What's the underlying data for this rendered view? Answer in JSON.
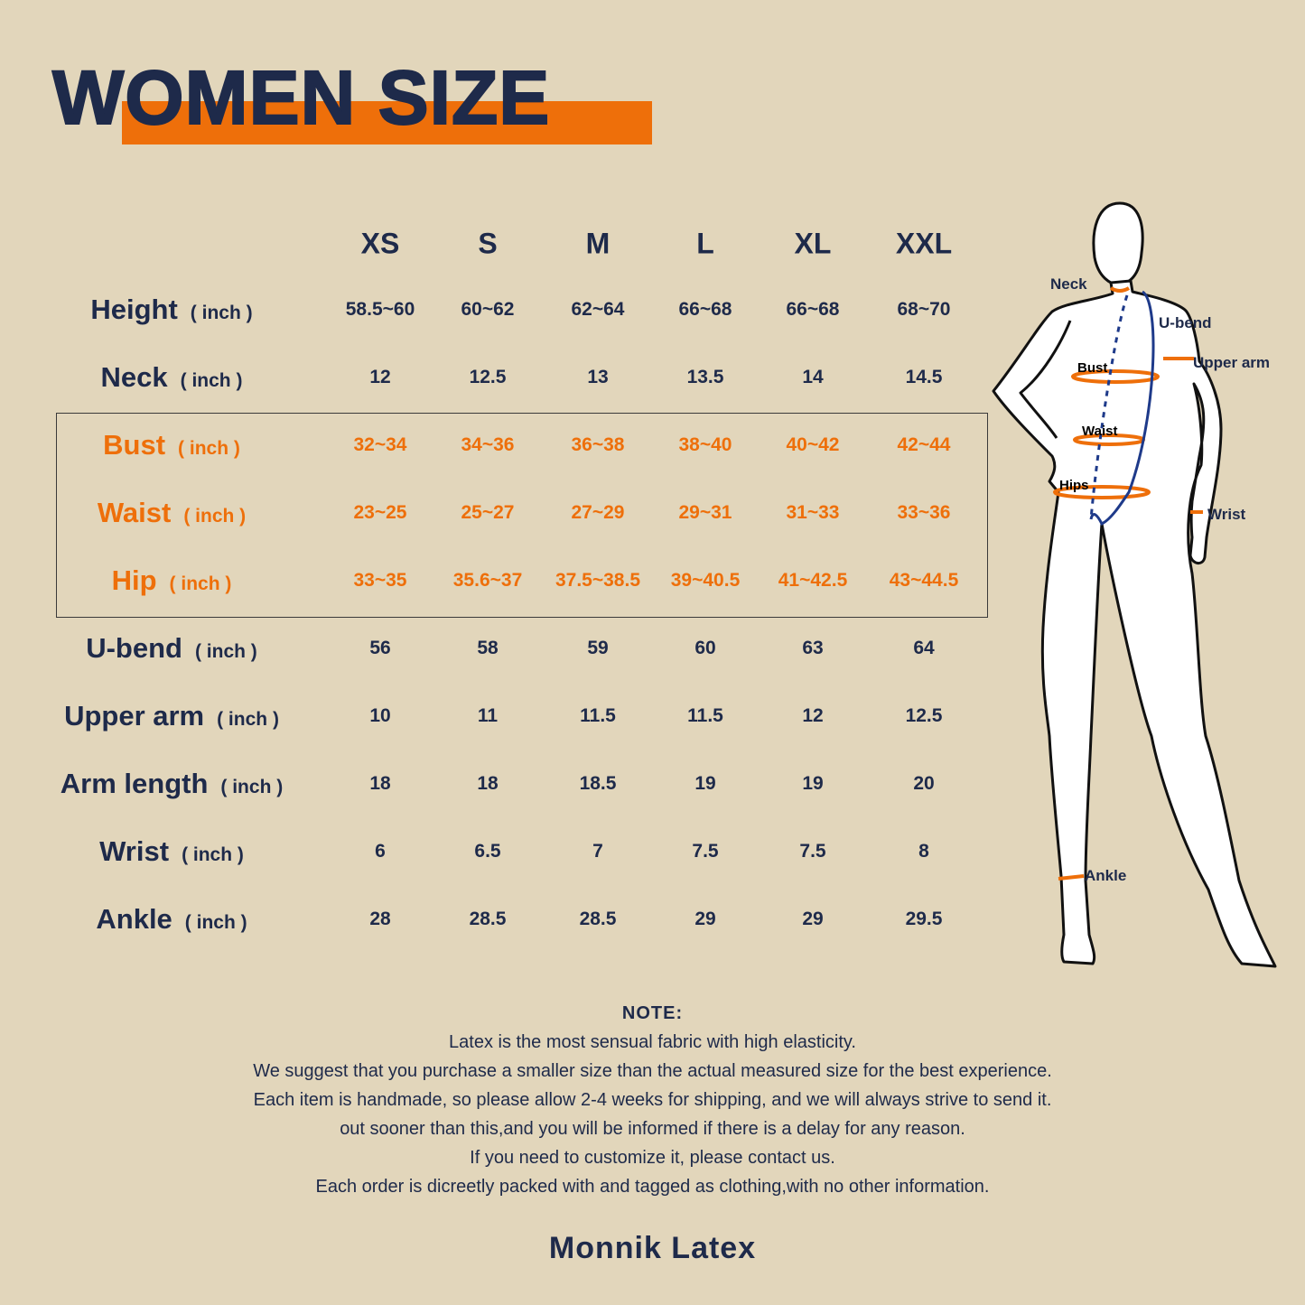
{
  "title": "WOMEN SIZE",
  "colors": {
    "background": "#e2d6bb",
    "navy": "#1e2a4a",
    "orange": "#ee6f0a"
  },
  "sizes": [
    "XS",
    "S",
    "M",
    "L",
    "XL",
    "XXL"
  ],
  "rows": [
    {
      "label": "Height",
      "unit": "( inch )",
      "highlight": false,
      "values": [
        "58.5~60",
        "60~62",
        "62~64",
        "66~68",
        "66~68",
        "68~70"
      ]
    },
    {
      "label": "Neck",
      "unit": "( inch )",
      "highlight": false,
      "values": [
        "12",
        "12.5",
        "13",
        "13.5",
        "14",
        "14.5"
      ]
    },
    {
      "label": "Bust",
      "unit": "( inch )",
      "highlight": true,
      "values": [
        "32~34",
        "34~36",
        "36~38",
        "38~40",
        "40~42",
        "42~44"
      ]
    },
    {
      "label": "Waist",
      "unit": "( inch )",
      "highlight": true,
      "values": [
        "23~25",
        "25~27",
        "27~29",
        "29~31",
        "31~33",
        "33~36"
      ]
    },
    {
      "label": "Hip",
      "unit": "( inch )",
      "highlight": true,
      "values": [
        "33~35",
        "35.6~37",
        "37.5~38.5",
        "39~40.5",
        "41~42.5",
        "43~44.5"
      ]
    },
    {
      "label": "U-bend",
      "unit": "( inch )",
      "highlight": false,
      "values": [
        "56",
        "58",
        "59",
        "60",
        "63",
        "64"
      ]
    },
    {
      "label": "Upper arm",
      "unit": "( inch )",
      "highlight": false,
      "values": [
        "10",
        "11",
        "11.5",
        "11.5",
        "12",
        "12.5"
      ]
    },
    {
      "label": "Arm length",
      "unit": "( inch )",
      "highlight": false,
      "values": [
        "18",
        "18",
        "18.5",
        "19",
        "19",
        "20"
      ]
    },
    {
      "label": "Wrist",
      "unit": "( inch )",
      "highlight": false,
      "values": [
        "6",
        "6.5",
        "7",
        "7.5",
        "7.5",
        "8"
      ]
    },
    {
      "label": "Ankle",
      "unit": "( inch )",
      "highlight": false,
      "values": [
        "28",
        "28.5",
        "28.5",
        "29",
        "29",
        "29.5"
      ]
    }
  ],
  "figure_labels": {
    "neck": "Neck",
    "ubend": "U-bend",
    "upper_arm": "Upper arm",
    "bust": "Bust",
    "waist": "Waist",
    "hips": "Hips",
    "wrist": "Wrist",
    "ankle": "Ankle"
  },
  "note": {
    "heading": "NOTE:",
    "lines": [
      "Latex is the most sensual fabric with high elasticity.",
      "We suggest that you purchase a smaller size than the actual measured size for the best experience.",
      "Each item is handmade, so please allow 2-4 weeks for shipping, and we will always strive to send it.",
      "out sooner than this,and you will be informed if there is a delay for any reason.",
      "If you need to customize it, please contact us.",
      "Each order is dicreetly packed with and tagged as clothing,with no other information."
    ]
  },
  "brand": "Monnik Latex"
}
